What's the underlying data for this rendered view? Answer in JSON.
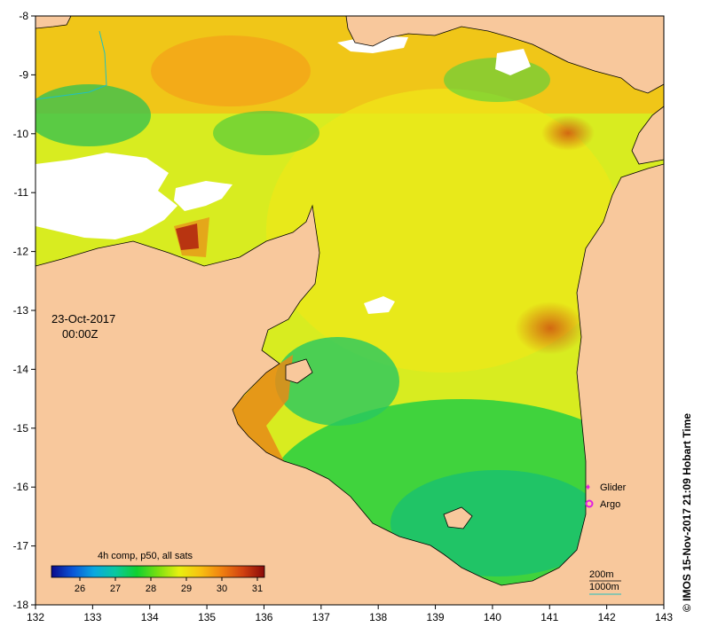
{
  "map": {
    "date": "23-Oct-2017",
    "time": "00:00Z",
    "x_ticks": [
      "132",
      "133",
      "134",
      "135",
      "136",
      "137",
      "138",
      "139",
      "140",
      "141",
      "142",
      "143"
    ],
    "y_ticks": [
      "-8",
      "-9",
      "-10",
      "-11",
      "-12",
      "-13",
      "-14",
      "-15",
      "-16",
      "-17",
      "-18"
    ],
    "colorbar": {
      "title": "4h comp, p50, all sats",
      "ticks": [
        "26",
        "27",
        "28",
        "29",
        "30",
        "31"
      ],
      "range": [
        25.2,
        31.2
      ],
      "colors": [
        "#0a0a8c",
        "#0a56d8",
        "#0aa8e0",
        "#0ac8a0",
        "#10d030",
        "#7ae010",
        "#e8f010",
        "#f8c010",
        "#f08010",
        "#d04010",
        "#8a0a0a"
      ]
    },
    "legend": {
      "glider_label": "Glider",
      "argo_label": "Argo",
      "marker_color": "#e020e0"
    },
    "contours": {
      "label_200": "200m",
      "label_1000": "1000m",
      "color_1000": "#20c0c0"
    },
    "side_text": "© IMOS 15-Nov-2017 21:09 Hobart Time",
    "colors": {
      "land": "#f8c89c",
      "cloud": "#ffffff",
      "coast": "#000000"
    }
  }
}
